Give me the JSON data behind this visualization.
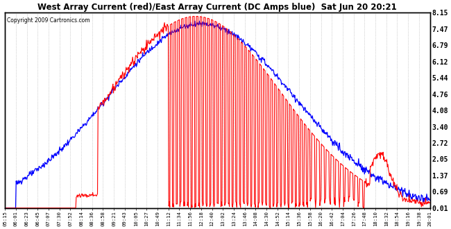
{
  "title": "West Array Current (red)/East Array Current (DC Amps blue)  Sat Jun 20 20:21",
  "copyright": "Copyright 2009 Cartronics.com",
  "ylabel_right_ticks": [
    0.01,
    0.69,
    1.37,
    2.05,
    2.72,
    3.4,
    4.08,
    4.76,
    5.44,
    6.12,
    6.79,
    7.47,
    8.15
  ],
  "ylim": [
    0.01,
    8.15
  ],
  "x_labels": [
    "05:15",
    "06:01",
    "06:23",
    "06:45",
    "07:07",
    "07:30",
    "07:52",
    "08:14",
    "08:36",
    "08:58",
    "09:21",
    "09:43",
    "10:05",
    "10:27",
    "10:49",
    "11:12",
    "11:34",
    "11:56",
    "12:18",
    "12:40",
    "13:02",
    "13:24",
    "13:46",
    "14:08",
    "14:30",
    "14:52",
    "15:14",
    "15:36",
    "15:58",
    "16:20",
    "16:42",
    "17:04",
    "17:26",
    "17:48",
    "18:10",
    "18:32",
    "18:54",
    "19:16",
    "19:38",
    "20:01"
  ],
  "bg_color": "#ffffff",
  "grid_color": "#aaaaaa",
  "red_color": "#ff0000",
  "blue_color": "#0000ff"
}
